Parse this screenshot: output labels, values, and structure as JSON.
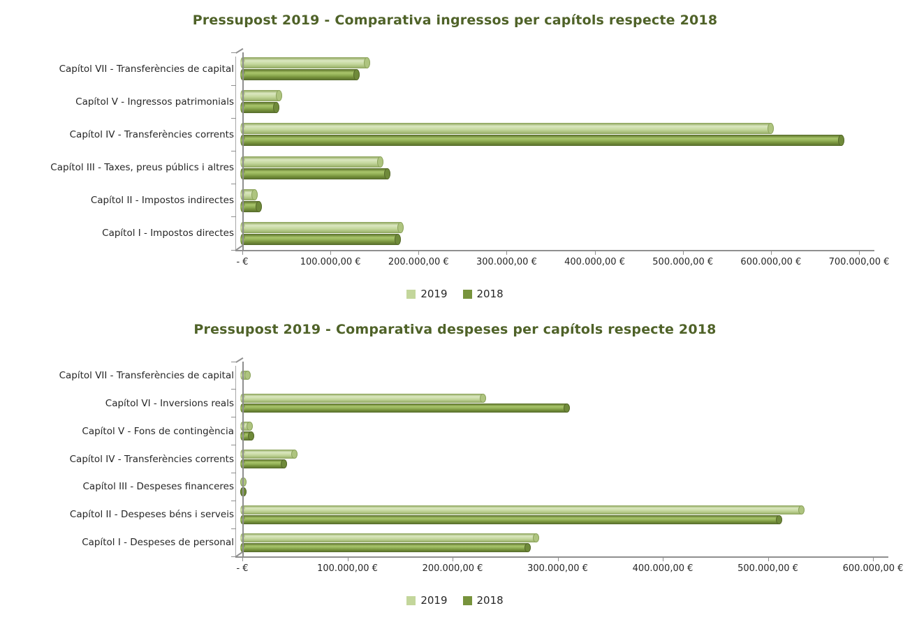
{
  "chart_data": [
    {
      "type": "bar",
      "orientation": "horizontal",
      "title": "Pressupost 2019 - Comparativa ingressos per capítols respecte 2018",
      "categories": [
        "Capítol VII - Transferències de capital",
        "Capítol V - Ingressos patrimonials",
        "Capítol IV - Transferències corrents",
        "Capítol III - Taxes, preus públics i altres",
        "Capítol II - Impostos indirectes",
        "Capítol I - Impostos directes"
      ],
      "series": [
        {
          "name": "2019",
          "color": "#c3d69b",
          "values": [
            142000,
            42000,
            600000,
            157000,
            14000,
            180000
          ]
        },
        {
          "name": "2018",
          "color": "#77933c",
          "values": [
            130000,
            39000,
            680000,
            165000,
            19000,
            177000
          ]
        }
      ],
      "xlim": [
        0,
        700000
      ],
      "x_tick_labels": [
        "-   €",
        "100.000,00 €",
        "200.000,00 €",
        "300.000,00 €",
        "400.000,00 €",
        "500.000,00 €",
        "600.000,00 €",
        "700.000,00 €"
      ],
      "grid": false,
      "legend_position": "bottom"
    },
    {
      "type": "bar",
      "orientation": "horizontal",
      "title": "Pressupost 2019 - Comparativa despeses per capítols respecte 2018",
      "categories": [
        "Capítol VII - Transferències de capital",
        "Capítol VI - Inversions reals",
        "Capítol V - Fons de contingència",
        "Capítol IV - Transferències corrents",
        "Capítol III - Despeses financeres",
        "Capítol II - Despeses béns i serveis",
        "Capítol I - Despeses de personal"
      ],
      "series": [
        {
          "name": "2019",
          "color": "#c3d69b",
          "values": [
            5000,
            229000,
            7000,
            50000,
            1000,
            532000,
            280000
          ]
        },
        {
          "name": "2018",
          "color": "#77933c",
          "values": [
            0,
            309000,
            8500,
            40000,
            1500,
            511000,
            272000
          ]
        }
      ],
      "xlim": [
        0,
        600000
      ],
      "x_tick_labels": [
        "-   €",
        "100.000,00 €",
        "200.000,00 €",
        "300.000,00 €",
        "400.000,00 €",
        "500.000,00 €",
        "600.000,00 €"
      ],
      "grid": false,
      "legend_position": "bottom"
    }
  ],
  "colors": {
    "title": "#4f6228",
    "axis": "#8f8f8f",
    "text": "#262626",
    "series_2019": "#c3d69b",
    "series_2018": "#77933c"
  }
}
